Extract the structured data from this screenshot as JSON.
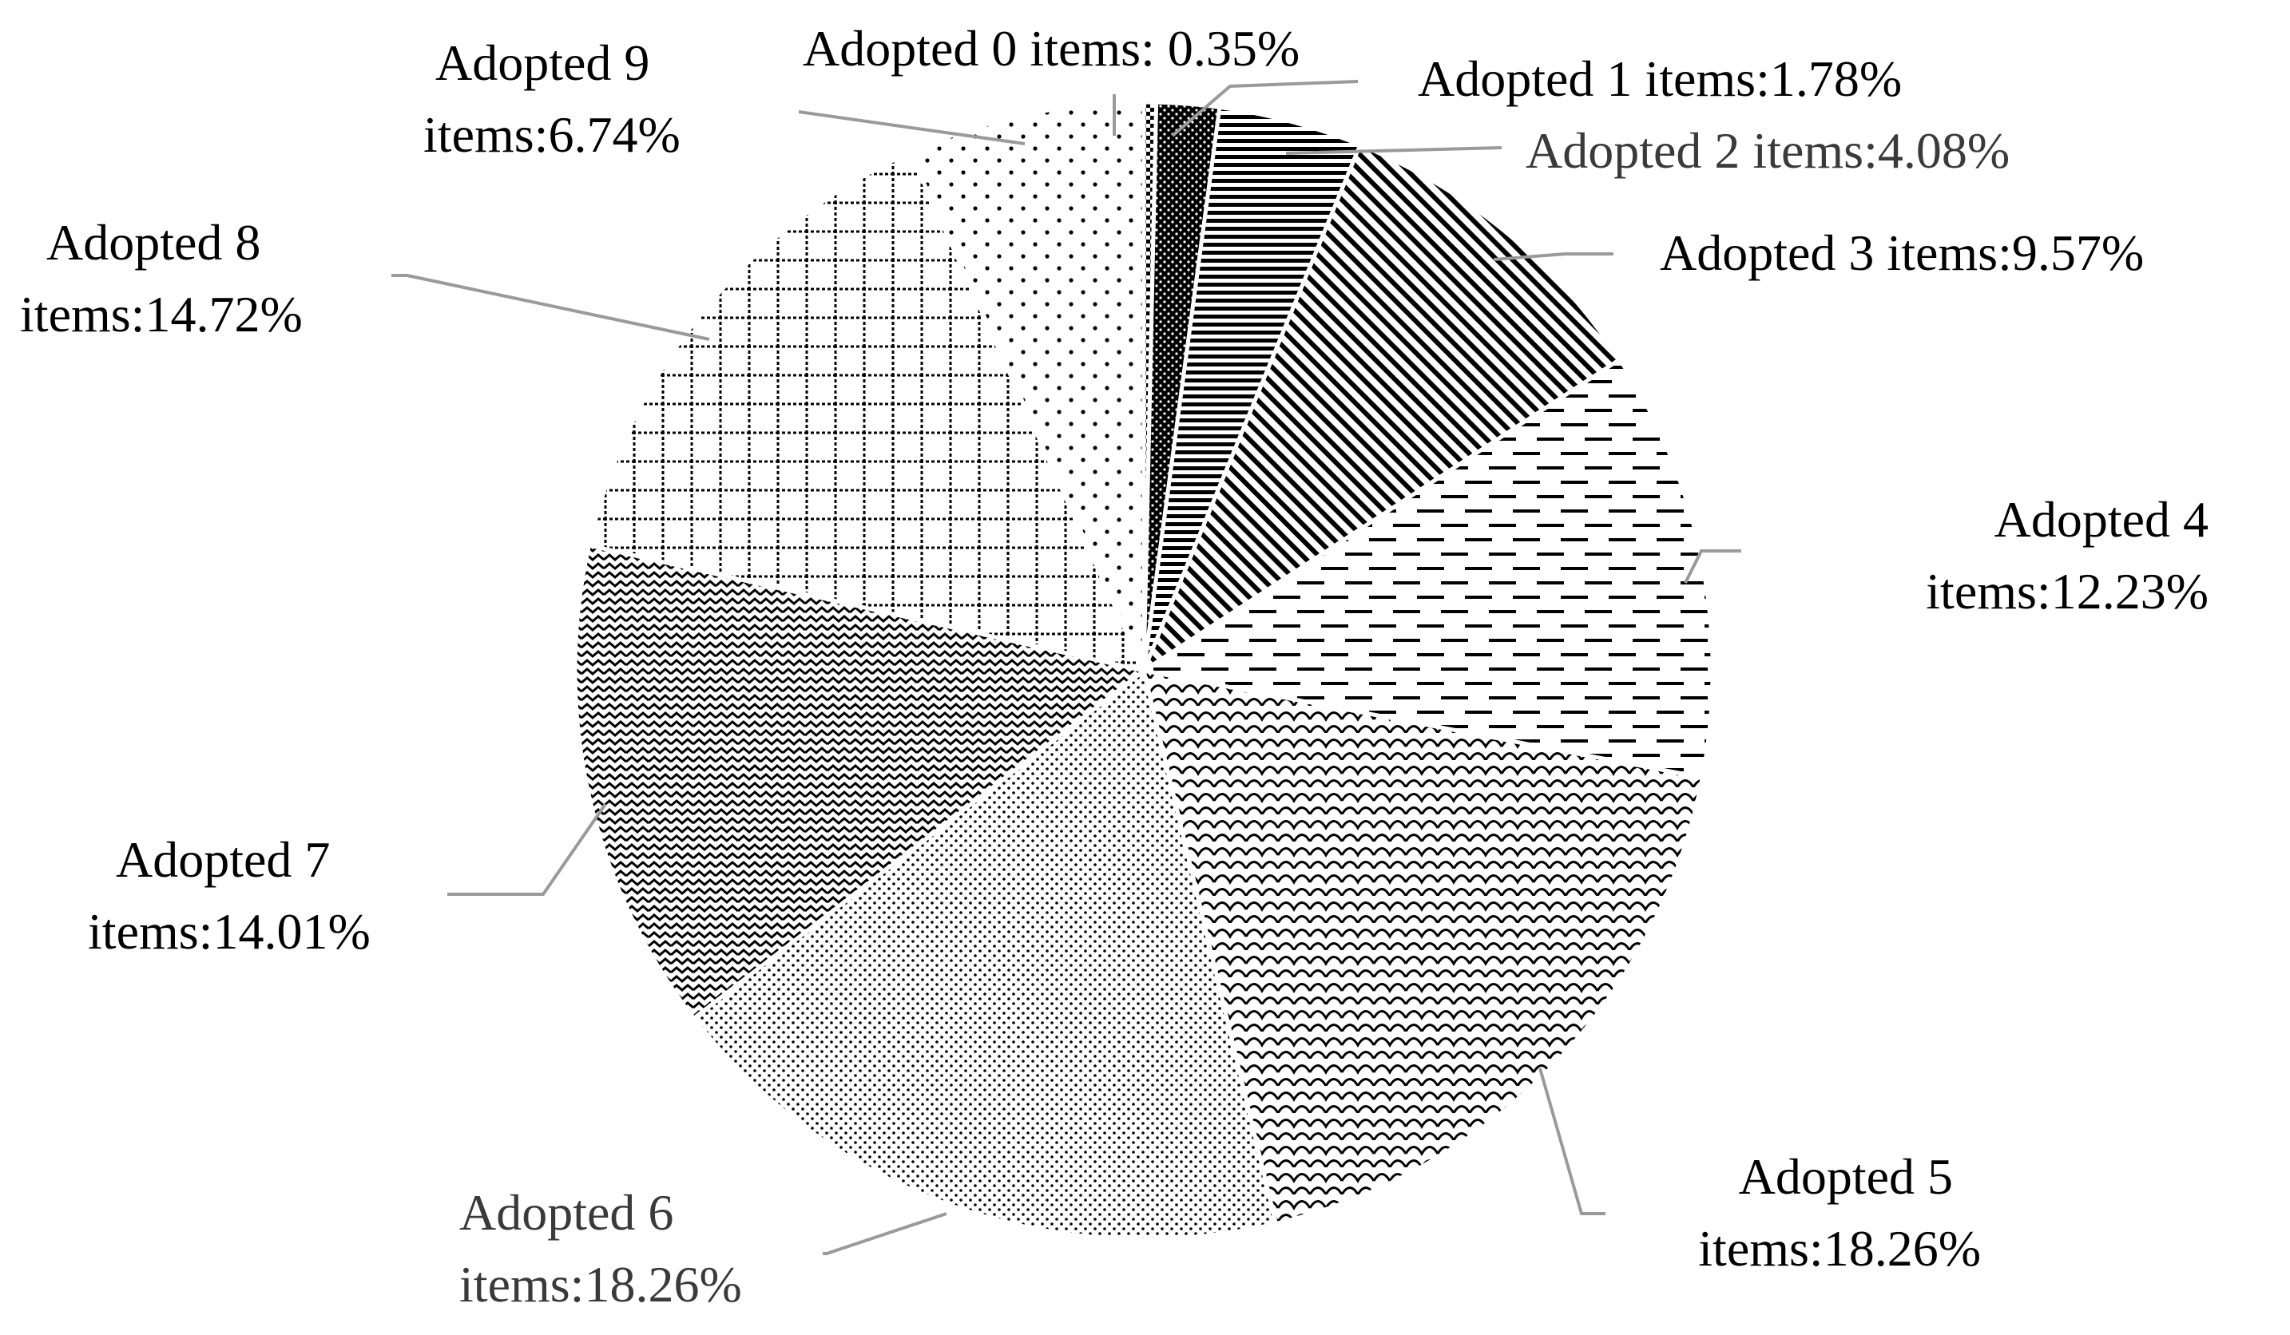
{
  "chart_data": {
    "type": "pie",
    "title": "",
    "start_angle_deg": 0,
    "direction": "clockwise",
    "slices": [
      {
        "category": "Adopted 0 items",
        "value": 0.35,
        "label_lines": [
          "Adopted 0 items: 0.35%"
        ],
        "pattern": "checker"
      },
      {
        "category": "Adopted 1 items",
        "value": 1.78,
        "label_lines": [
          "Adopted 1 items:1.78%"
        ],
        "pattern": "dense-dots"
      },
      {
        "category": "Adopted 2 items",
        "value": 4.08,
        "label_lines": [
          "Adopted 2 items:4.08%"
        ],
        "pattern": "horizontal-lines"
      },
      {
        "category": "Adopted 3 items",
        "value": 9.57,
        "label_lines": [
          "Adopted 3 items:9.57%"
        ],
        "pattern": "diagonal-lines"
      },
      {
        "category": "Adopted 4 items",
        "value": 12.23,
        "label_lines": [
          "Adopted 4",
          "items:12.23%"
        ],
        "pattern": "dashed-lines"
      },
      {
        "category": "Adopted 5 items",
        "value": 18.26,
        "label_lines": [
          "Adopted 5",
          "items:18.26%"
        ],
        "pattern": "scales"
      },
      {
        "category": "Adopted 6 items",
        "value": 18.26,
        "label_lines": [
          "Adopted 6",
          "items:18.26%"
        ],
        "pattern": "fine-dots"
      },
      {
        "category": "Adopted 7 items",
        "value": 14.01,
        "label_lines": [
          "Adopted 7",
          "items:14.01%"
        ],
        "pattern": "waves"
      },
      {
        "category": "Adopted 8 items",
        "value": 14.72,
        "label_lines": [
          "Adopted 8",
          "items:14.72%"
        ],
        "pattern": "grid"
      },
      {
        "category": "Adopted 9 items",
        "value": 6.74,
        "label_lines": [
          "Adopted 9",
          "items:6.74%"
        ],
        "pattern": "sparse-dots"
      }
    ],
    "legend": "none",
    "data_labels": "outside-with-leader-lines"
  }
}
